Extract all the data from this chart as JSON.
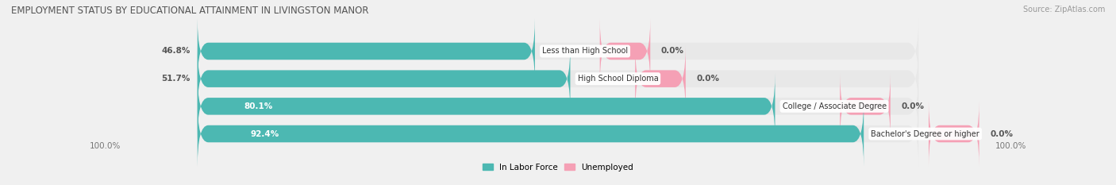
{
  "title": "EMPLOYMENT STATUS BY EDUCATIONAL ATTAINMENT IN LIVINGSTON MANOR",
  "source": "Source: ZipAtlas.com",
  "categories": [
    "Less than High School",
    "High School Diploma",
    "College / Associate Degree",
    "Bachelor's Degree or higher"
  ],
  "labor_force_pct": [
    46.8,
    51.7,
    80.1,
    92.4
  ],
  "unemployed_pct": [
    0.0,
    0.0,
    0.0,
    0.0
  ],
  "bar_color_labor": "#4cb8b2",
  "bar_color_unemployed": "#f5a0b5",
  "bar_bg_color": "#e0e0e0",
  "total_width": 100.0,
  "left_axis_label": "100.0%",
  "right_axis_label": "100.0%",
  "legend_labor_label": "In Labor Force",
  "legend_unemployed_label": "Unemployed",
  "title_fontsize": 8.5,
  "label_fontsize": 7.5,
  "tick_fontsize": 7.5,
  "source_fontsize": 7,
  "background_color": "#f0f0f0",
  "row_bg_color": "#e8e8e8",
  "cat_label_fontsize": 7.0
}
